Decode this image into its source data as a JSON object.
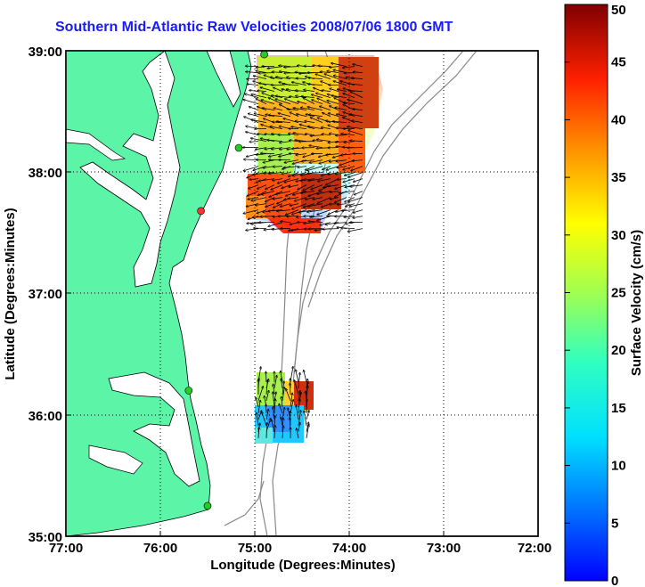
{
  "title": "Southern Mid-Atlantic Raw Velocities 2008/07/06 1800 GMT",
  "x_axis": {
    "label": "Longitude (Degrees:Minutes)",
    "ticks": [
      "77:00",
      "76:00",
      "75:00",
      "74:00",
      "73:00",
      "72:00"
    ]
  },
  "y_axis": {
    "label": "Latitude (Degrees:Minutes)",
    "ticks": [
      "39:00",
      "38:00",
      "37:00",
      "36:00",
      "35:00"
    ]
  },
  "colorbar": {
    "label": "Surface Velocity (cm/s)",
    "ticks": [
      "50",
      "45",
      "40",
      "35",
      "30",
      "25",
      "20",
      "15",
      "10",
      "5",
      "0"
    ],
    "min": 0,
    "max": 50,
    "colormap": "jet"
  },
  "colors": {
    "land": "#5cf5a8",
    "water": "#ffffff",
    "bathymetry": "#888888",
    "title": "#1a1aff"
  },
  "stations": [
    {
      "lon": -74.9,
      "lat": 38.97,
      "color": "#22cc22"
    },
    {
      "lon": -75.17,
      "lat": 38.2,
      "color": "#22cc22"
    },
    {
      "lon": -75.57,
      "lat": 37.68,
      "color": "#ff3333"
    },
    {
      "lon": -75.7,
      "lat": 36.2,
      "color": "#22cc22"
    },
    {
      "lon": -75.5,
      "lat": 35.25,
      "color": "#22cc22"
    }
  ],
  "chart_data": {
    "type": "vector-field map",
    "xlim": [
      -77,
      -72
    ],
    "ylim": [
      35,
      39
    ],
    "grid": true,
    "regions": [
      {
        "lon_range": [
          -75.0,
          -73.8
        ],
        "lat_range": [
          37.5,
          38.9
        ]
      },
      {
        "lon_range": [
          -75.0,
          -74.4
        ],
        "lat_range": [
          35.8,
          36.3
        ]
      }
    ]
  }
}
